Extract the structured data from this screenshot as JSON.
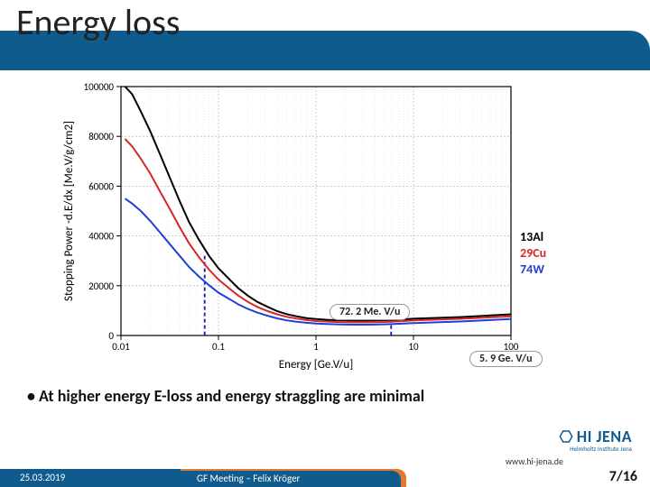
{
  "title": "Energy loss",
  "chart": {
    "type": "line",
    "xlabel": "Energy [Ge.V/u]",
    "ylabel": "Stopping Power -d.E/dx [Me.V/g/cm2]",
    "label_fontsize": 13,
    "tick_fontsize": 11,
    "xscale": "log",
    "yscale": "linear",
    "xlim": [
      0.01,
      100
    ],
    "ylim": [
      0,
      100000
    ],
    "ytick_step": 20000,
    "xtick_vals": [
      0.01,
      0.1,
      1,
      10,
      100
    ],
    "xtick_labels": [
      "0.01",
      "0.1",
      "1",
      "10",
      "100"
    ],
    "ytick_vals": [
      0,
      20000,
      40000,
      60000,
      80000,
      100000
    ],
    "ytick_labels": [
      "0",
      "20000",
      "40000",
      "60000",
      "80000",
      "100000"
    ],
    "grid": {
      "major": true,
      "minor_x": true,
      "color": "#bbbbbb",
      "minor_color": "#dddddd"
    },
    "axis_color": "#000000",
    "background_color": "#ffffff",
    "line_width": 2,
    "legend": {
      "position": "right",
      "items": [
        {
          "label": "13Al",
          "color": "#000000"
        },
        {
          "label": "29Cu",
          "color": "#d62728"
        },
        {
          "label": "74W",
          "color": "#1f3fd6"
        }
      ]
    },
    "series": [
      {
        "name": "13Al",
        "color": "#000000",
        "x": [
          0.011,
          0.013,
          0.016,
          0.02,
          0.025,
          0.032,
          0.04,
          0.05,
          0.063,
          0.08,
          0.1,
          0.13,
          0.16,
          0.2,
          0.25,
          0.32,
          0.4,
          0.5,
          0.63,
          0.8,
          1,
          1.3,
          1.6,
          2,
          2.5,
          3.2,
          4,
          5,
          6.3,
          8,
          10,
          30,
          100
        ],
        "y": [
          100000,
          97000,
          90000,
          82000,
          73000,
          63000,
          54000,
          45500,
          38500,
          32000,
          27000,
          22500,
          19000,
          16000,
          13500,
          11500,
          9800,
          8600,
          7700,
          7000,
          6600,
          6300,
          6150,
          6050,
          6000,
          6000,
          6050,
          6150,
          6300,
          6500,
          6750,
          7400,
          8500
        ]
      },
      {
        "name": "29Cu",
        "color": "#d62728",
        "x": [
          0.011,
          0.013,
          0.016,
          0.02,
          0.025,
          0.032,
          0.04,
          0.05,
          0.063,
          0.08,
          0.1,
          0.13,
          0.16,
          0.2,
          0.25,
          0.32,
          0.4,
          0.5,
          0.63,
          0.8,
          1,
          1.3,
          1.6,
          2,
          2.5,
          3.2,
          4,
          5,
          6.3,
          8,
          10,
          30,
          100
        ],
        "y": [
          79000,
          76000,
          71000,
          65000,
          58000,
          50500,
          43500,
          37000,
          31500,
          26500,
          22500,
          18800,
          16000,
          13500,
          11500,
          9800,
          8500,
          7500,
          6800,
          6200,
          5800,
          5600,
          5450,
          5350,
          5300,
          5300,
          5350,
          5450,
          5600,
          5800,
          6050,
          6700,
          7700
        ]
      },
      {
        "name": "74W",
        "color": "#1f3fd6",
        "x": [
          0.011,
          0.013,
          0.016,
          0.02,
          0.025,
          0.032,
          0.04,
          0.05,
          0.063,
          0.08,
          0.1,
          0.13,
          0.16,
          0.2,
          0.25,
          0.32,
          0.4,
          0.5,
          0.63,
          0.8,
          1,
          1.3,
          1.6,
          2,
          2.5,
          3.2,
          4,
          5,
          6.3,
          8,
          10,
          30,
          100
        ],
        "y": [
          55000,
          53000,
          50000,
          46000,
          41500,
          36500,
          32000,
          27500,
          23700,
          20200,
          17200,
          14600,
          12500,
          10700,
          9200,
          7900,
          6900,
          6100,
          5500,
          5100,
          4800,
          4600,
          4500,
          4400,
          4350,
          4350,
          4400,
          4500,
          4600,
          4800,
          5000,
          5600,
          6600
        ]
      }
    ],
    "annotations": [
      {
        "label": "72. 2 Me. V/u",
        "x": 0.0722,
        "line_color": "#1a1aaa",
        "dash": "4,3"
      },
      {
        "label": "5. 9 Ge. V/u",
        "x": 5.9,
        "line_color": "#1a1aaa",
        "dash": "4,3"
      }
    ]
  },
  "bullet": "At higher energy E-loss and energy straggling are minimal",
  "logo": {
    "main": "HI JENA",
    "sub": "Helmholtz Institute Jena",
    "color": "#0f5b8e"
  },
  "url": "www.hi-jena.de",
  "footer": {
    "date": "25.03.2019",
    "meeting": "GF Meeting – Felix Kröger"
  },
  "pager": "7/16"
}
